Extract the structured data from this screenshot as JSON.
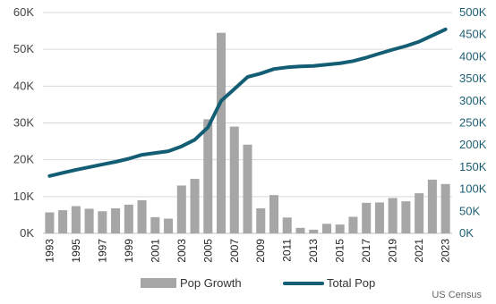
{
  "chart_data": {
    "type": "bar",
    "categories": [
      "1993",
      "1994",
      "1995",
      "1996",
      "1997",
      "1998",
      "1999",
      "2000",
      "2001",
      "2002",
      "2003",
      "2004",
      "2005",
      "2006",
      "2007",
      "2008",
      "2009",
      "2010",
      "2011",
      "2012",
      "2013",
      "2014",
      "2015",
      "2016",
      "2017",
      "2018",
      "2019",
      "2020",
      "2021",
      "2022",
      "2023"
    ],
    "x_tick_labels": [
      "1993",
      "1995",
      "1997",
      "1999",
      "2001",
      "2003",
      "2005",
      "2007",
      "2009",
      "2011",
      "2013",
      "2015",
      "2017",
      "2019",
      "2021",
      "2023"
    ],
    "series": [
      {
        "name": "Pop Growth",
        "type": "bar",
        "axis": "left",
        "color": "#a6a6a6",
        "values": [
          5700,
          6300,
          7400,
          6700,
          6000,
          6800,
          7800,
          9000,
          4400,
          4000,
          13000,
          14800,
          31000,
          54500,
          29000,
          24100,
          6800,
          10400,
          4300,
          1500,
          1000,
          2600,
          2400,
          4500,
          8300,
          8400,
          9600,
          8700,
          10900,
          14600,
          13400
        ]
      },
      {
        "name": "Total Pop",
        "type": "line",
        "axis": "right",
        "color": "#135e74",
        "values": [
          130000,
          137000,
          144000,
          150000,
          156000,
          162000,
          169000,
          178000,
          182000,
          186000,
          197000,
          212000,
          240000,
          300000,
          327000,
          354000,
          362000,
          372000,
          376000,
          378000,
          379000,
          382000,
          385000,
          390000,
          398000,
          407000,
          416000,
          424000,
          434000,
          448000,
          462000
        ]
      }
    ],
    "y_left": {
      "ylim": [
        0,
        60000
      ],
      "ticks": [
        "0K",
        "10K",
        "20K",
        "30K",
        "40K",
        "50K",
        "60K"
      ]
    },
    "y_right": {
      "ylim": [
        0,
        500000
      ],
      "ticks": [
        "0K",
        "50K",
        "100K",
        "150K",
        "200K",
        "250K",
        "300K",
        "350K",
        "400K",
        "450K",
        "500K"
      ]
    },
    "grid": true,
    "legend": {
      "position": "bottom",
      "items": [
        "Pop Growth",
        "Total Pop"
      ]
    },
    "source": "US Census"
  }
}
